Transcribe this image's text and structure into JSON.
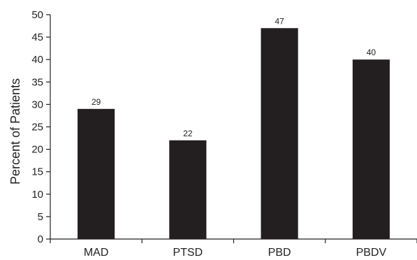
{
  "chart_data": {
    "type": "bar",
    "title": "",
    "xlabel": "",
    "ylabel": "Percent of Patients",
    "categories": [
      "MAD",
      "PTSD",
      "PBD",
      "PBDV"
    ],
    "values": [
      29,
      22,
      47,
      40
    ],
    "data_labels": [
      "29",
      "22",
      "47",
      "40"
    ],
    "ylim": [
      0,
      50
    ],
    "yticks": [
      0,
      5,
      10,
      15,
      20,
      25,
      30,
      35,
      40,
      45,
      50
    ],
    "grid": false,
    "legend": "none",
    "bar_color": "#231f20",
    "axis_color": "#222222"
  }
}
